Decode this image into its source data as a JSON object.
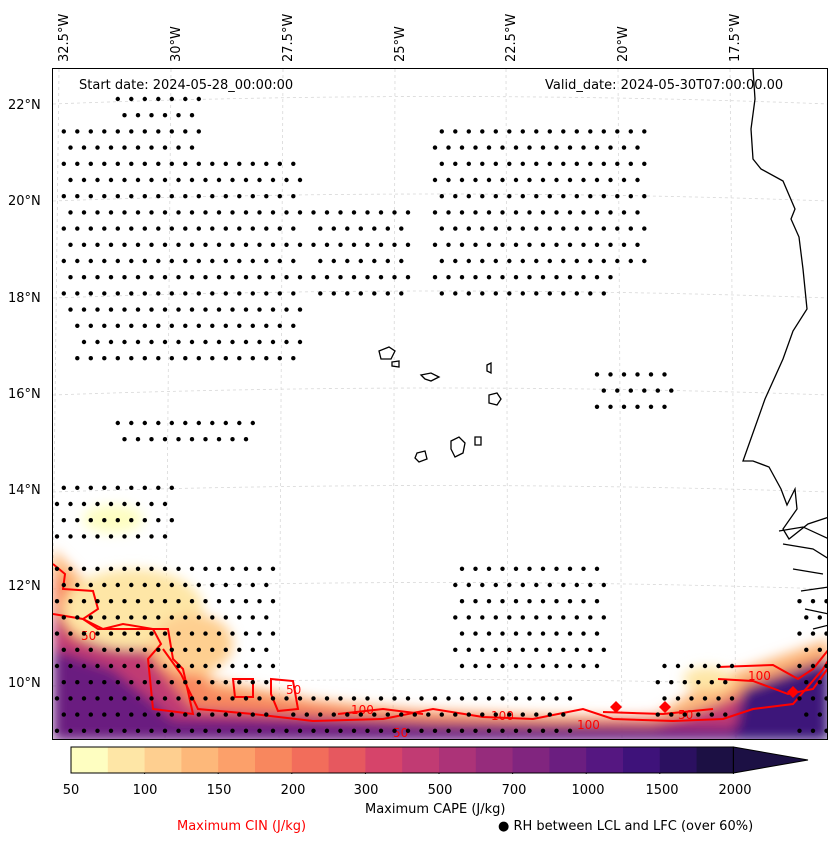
{
  "header": {
    "start_date": "Start date: 2024-05-28_00:00:00",
    "valid_date": "Valid_date: 2024-05-30T07:00:00.00"
  },
  "axes": {
    "longitude_labels": [
      "32.5°W",
      "30°W",
      "27.5°W",
      "25°W",
      "22.5°W",
      "20°W",
      "17.5°W"
    ],
    "latitude_labels": [
      "22°N",
      "20°N",
      "18°N",
      "16°N",
      "14°N",
      "12°N",
      "10°N"
    ]
  },
  "colorbar": {
    "label": "Maximum CAPE (J/kg)",
    "ticks": [
      "50",
      "100",
      "150",
      "200",
      "300",
      "500",
      "700",
      "1000",
      "1500",
      "2000"
    ],
    "colors": [
      "#fefec1",
      "#fee6a6",
      "#fecf90",
      "#fdb87a",
      "#fca06a",
      "#f8875e",
      "#f26d5b",
      "#e6585f",
      "#d6446a",
      "#c13b73",
      "#ac3378",
      "#962c7c",
      "#81257f",
      "#6b1e80",
      "#551781",
      "#3e127a",
      "#2b1060",
      "#1c1044"
    ]
  },
  "contour_labels": [
    "50",
    "100",
    "50",
    "100",
    "50",
    "100",
    "50",
    "100"
  ],
  "legend": {
    "cin_label": "Maximum CIN (J/kg)",
    "cin_color": "#ff0000",
    "rh_marker": "●",
    "rh_label": "RH between LCL and LFC (over 60%)"
  }
}
